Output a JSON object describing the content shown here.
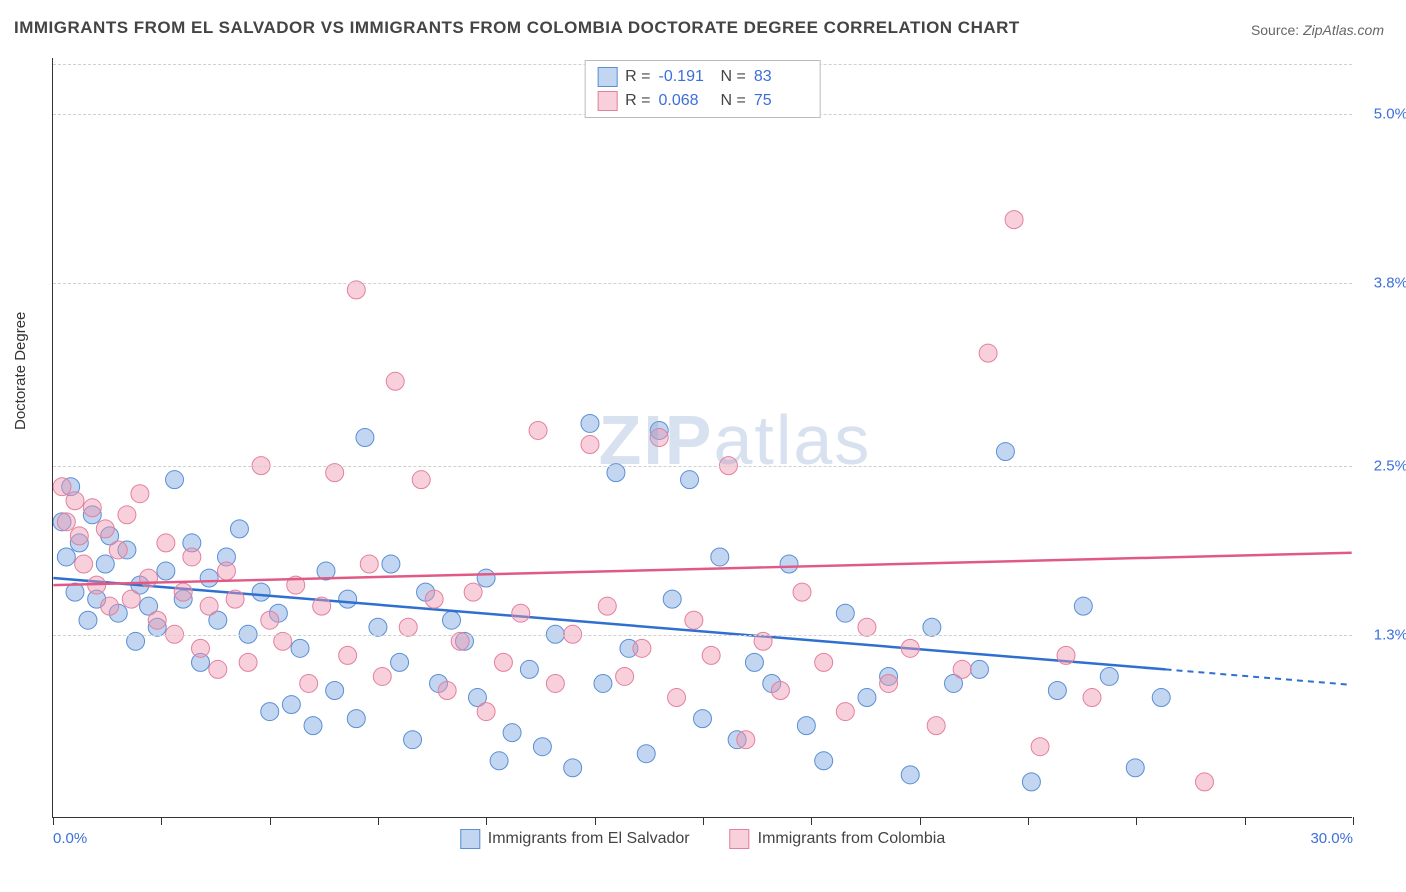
{
  "title": "IMMIGRANTS FROM EL SALVADOR VS IMMIGRANTS FROM COLOMBIA DOCTORATE DEGREE CORRELATION CHART",
  "source_label": "Source:",
  "source_name": "ZipAtlas.com",
  "ylabel": "Doctorate Degree",
  "watermark_bold": "ZIP",
  "watermark_rest": "atlas",
  "chart": {
    "type": "scatter",
    "xlim": [
      0,
      30
    ],
    "ylim": [
      0,
      5.4
    ],
    "xticks": [
      0,
      2.5,
      5,
      7.5,
      10,
      12.5,
      15,
      17.5,
      20,
      22.5,
      25,
      27.5,
      30
    ],
    "xtick_labels": {
      "0": "0.0%",
      "30": "30.0%"
    },
    "yticks": [
      1.3,
      2.5,
      3.8,
      5.0
    ],
    "ytick_labels": [
      "1.3%",
      "2.5%",
      "3.8%",
      "5.0%"
    ],
    "grid_color": "#d0d0d0",
    "background": "#ffffff",
    "series": [
      {
        "id": "el_salvador",
        "label": "Immigrants from El Salvador",
        "R": "-0.191",
        "N": "83",
        "marker_fill": "rgba(120,165,225,0.45)",
        "marker_stroke": "#5a8fd4",
        "marker_r": 9,
        "line_color": "#2f6fd0",
        "line_start": [
          0,
          1.7
        ],
        "line_end_solid": [
          25.7,
          1.05
        ],
        "line_end_dash": [
          30,
          0.94
        ],
        "points": [
          [
            0.2,
            2.1
          ],
          [
            0.3,
            1.85
          ],
          [
            0.4,
            2.35
          ],
          [
            0.5,
            1.6
          ],
          [
            0.6,
            1.95
          ],
          [
            0.8,
            1.4
          ],
          [
            0.9,
            2.15
          ],
          [
            1.0,
            1.55
          ],
          [
            1.2,
            1.8
          ],
          [
            1.3,
            2.0
          ],
          [
            1.5,
            1.45
          ],
          [
            1.7,
            1.9
          ],
          [
            1.9,
            1.25
          ],
          [
            2.0,
            1.65
          ],
          [
            2.2,
            1.5
          ],
          [
            2.4,
            1.35
          ],
          [
            2.6,
            1.75
          ],
          [
            2.8,
            2.4
          ],
          [
            3.0,
            1.55
          ],
          [
            3.2,
            1.95
          ],
          [
            3.4,
            1.1
          ],
          [
            3.6,
            1.7
          ],
          [
            3.8,
            1.4
          ],
          [
            4.0,
            1.85
          ],
          [
            4.3,
            2.05
          ],
          [
            4.5,
            1.3
          ],
          [
            4.8,
            1.6
          ],
          [
            5.0,
            0.75
          ],
          [
            5.2,
            1.45
          ],
          [
            5.5,
            0.8
          ],
          [
            5.7,
            1.2
          ],
          [
            6.0,
            0.65
          ],
          [
            6.3,
            1.75
          ],
          [
            6.5,
            0.9
          ],
          [
            6.8,
            1.55
          ],
          [
            7.0,
            0.7
          ],
          [
            7.2,
            2.7
          ],
          [
            7.5,
            1.35
          ],
          [
            7.8,
            1.8
          ],
          [
            8.0,
            1.1
          ],
          [
            8.3,
            0.55
          ],
          [
            8.6,
            1.6
          ],
          [
            8.9,
            0.95
          ],
          [
            9.2,
            1.4
          ],
          [
            9.5,
            1.25
          ],
          [
            9.8,
            0.85
          ],
          [
            10.0,
            1.7
          ],
          [
            10.3,
            0.4
          ],
          [
            10.6,
            0.6
          ],
          [
            11.0,
            1.05
          ],
          [
            11.3,
            0.5
          ],
          [
            11.6,
            1.3
          ],
          [
            12.0,
            0.35
          ],
          [
            12.4,
            2.8
          ],
          [
            12.7,
            0.95
          ],
          [
            13.0,
            2.45
          ],
          [
            13.3,
            1.2
          ],
          [
            13.7,
            0.45
          ],
          [
            14.0,
            2.75
          ],
          [
            14.3,
            1.55
          ],
          [
            14.7,
            2.4
          ],
          [
            15.0,
            0.7
          ],
          [
            15.4,
            1.85
          ],
          [
            15.8,
            0.55
          ],
          [
            16.2,
            1.1
          ],
          [
            16.6,
            0.95
          ],
          [
            17.0,
            1.8
          ],
          [
            17.4,
            0.65
          ],
          [
            17.8,
            0.4
          ],
          [
            18.3,
            1.45
          ],
          [
            18.8,
            0.85
          ],
          [
            19.3,
            1.0
          ],
          [
            19.8,
            0.3
          ],
          [
            20.3,
            1.35
          ],
          [
            20.8,
            0.95
          ],
          [
            21.4,
            1.05
          ],
          [
            22.0,
            2.6
          ],
          [
            22.6,
            0.25
          ],
          [
            23.2,
            0.9
          ],
          [
            23.8,
            1.5
          ],
          [
            24.4,
            1.0
          ],
          [
            25.0,
            0.35
          ],
          [
            25.6,
            0.85
          ]
        ]
      },
      {
        "id": "colombia",
        "label": "Immigrants from Colombia",
        "R": "0.068",
        "N": "75",
        "marker_fill": "rgba(240,150,175,0.45)",
        "marker_stroke": "#e3809e",
        "marker_r": 9,
        "line_color": "#e05a85",
        "line_start": [
          0,
          1.65
        ],
        "line_end_solid": [
          30,
          1.88
        ],
        "line_end_dash": null,
        "points": [
          [
            0.2,
            2.35
          ],
          [
            0.3,
            2.1
          ],
          [
            0.5,
            2.25
          ],
          [
            0.6,
            2.0
          ],
          [
            0.7,
            1.8
          ],
          [
            0.9,
            2.2
          ],
          [
            1.0,
            1.65
          ],
          [
            1.2,
            2.05
          ],
          [
            1.3,
            1.5
          ],
          [
            1.5,
            1.9
          ],
          [
            1.7,
            2.15
          ],
          [
            1.8,
            1.55
          ],
          [
            2.0,
            2.3
          ],
          [
            2.2,
            1.7
          ],
          [
            2.4,
            1.4
          ],
          [
            2.6,
            1.95
          ],
          [
            2.8,
            1.3
          ],
          [
            3.0,
            1.6
          ],
          [
            3.2,
            1.85
          ],
          [
            3.4,
            1.2
          ],
          [
            3.6,
            1.5
          ],
          [
            3.8,
            1.05
          ],
          [
            4.0,
            1.75
          ],
          [
            4.2,
            1.55
          ],
          [
            4.5,
            1.1
          ],
          [
            4.8,
            2.5
          ],
          [
            5.0,
            1.4
          ],
          [
            5.3,
            1.25
          ],
          [
            5.6,
            1.65
          ],
          [
            5.9,
            0.95
          ],
          [
            6.2,
            1.5
          ],
          [
            6.5,
            2.45
          ],
          [
            6.8,
            1.15
          ],
          [
            7.0,
            3.75
          ],
          [
            7.3,
            1.8
          ],
          [
            7.6,
            1.0
          ],
          [
            7.9,
            3.1
          ],
          [
            8.2,
            1.35
          ],
          [
            8.5,
            2.4
          ],
          [
            8.8,
            1.55
          ],
          [
            9.1,
            0.9
          ],
          [
            9.4,
            1.25
          ],
          [
            9.7,
            1.6
          ],
          [
            10.0,
            0.75
          ],
          [
            10.4,
            1.1
          ],
          [
            10.8,
            1.45
          ],
          [
            11.2,
            2.75
          ],
          [
            11.6,
            0.95
          ],
          [
            12.0,
            1.3
          ],
          [
            12.4,
            2.65
          ],
          [
            12.8,
            1.5
          ],
          [
            13.2,
            1.0
          ],
          [
            13.6,
            1.2
          ],
          [
            14.0,
            2.7
          ],
          [
            14.4,
            0.85
          ],
          [
            14.8,
            1.4
          ],
          [
            15.2,
            1.15
          ],
          [
            15.6,
            2.5
          ],
          [
            16.0,
            0.55
          ],
          [
            16.4,
            1.25
          ],
          [
            16.8,
            0.9
          ],
          [
            17.3,
            1.6
          ],
          [
            17.8,
            1.1
          ],
          [
            18.3,
            0.75
          ],
          [
            18.8,
            1.35
          ],
          [
            19.3,
            0.95
          ],
          [
            19.8,
            1.2
          ],
          [
            20.4,
            0.65
          ],
          [
            21.0,
            1.05
          ],
          [
            21.6,
            3.3
          ],
          [
            22.2,
            4.25
          ],
          [
            22.8,
            0.5
          ],
          [
            23.4,
            1.15
          ],
          [
            24.0,
            0.85
          ],
          [
            26.6,
            0.25
          ]
        ]
      }
    ]
  }
}
